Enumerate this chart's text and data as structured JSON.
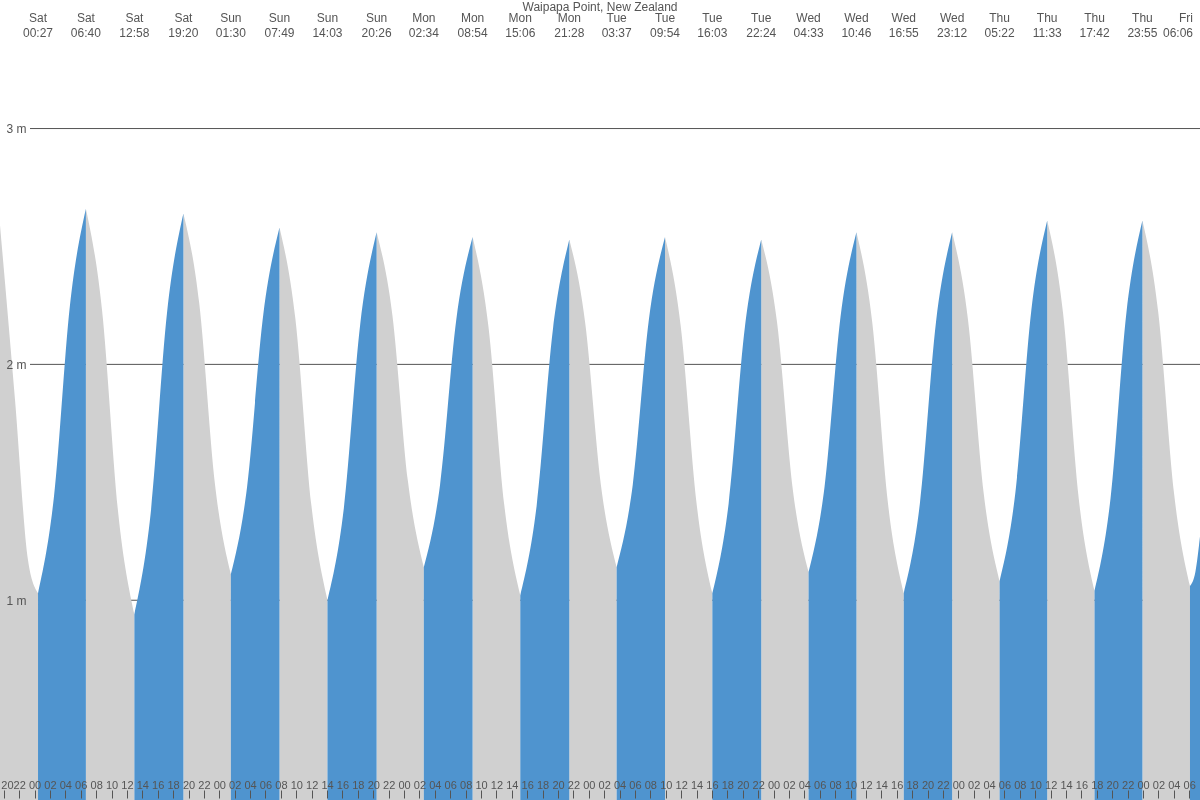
{
  "chart_data": {
    "type": "area",
    "title": "Waipapa Point, New Zealand",
    "xlim": [
      19.51,
      175.4
    ],
    "ylim": [
      0.153,
      3.545
    ],
    "yticks": [
      {
        "value": 1,
        "label": "1 m"
      },
      {
        "value": 2,
        "label": "2 m"
      },
      {
        "value": 3,
        "label": "3 m"
      }
    ],
    "xticks": [
      {
        "value": 20,
        "label": "20"
      },
      {
        "value": 22,
        "label": "22"
      },
      {
        "value": 24,
        "label": "00"
      },
      {
        "value": 26,
        "label": "02"
      },
      {
        "value": 28,
        "label": "04"
      },
      {
        "value": 30,
        "label": "06"
      },
      {
        "value": 32,
        "label": "08"
      },
      {
        "value": 34,
        "label": "10"
      },
      {
        "value": 36,
        "label": "12"
      },
      {
        "value": 38,
        "label": "14"
      },
      {
        "value": 40,
        "label": "16"
      },
      {
        "value": 42,
        "label": "18"
      },
      {
        "value": 44,
        "label": "20"
      },
      {
        "value": 46,
        "label": "22"
      },
      {
        "value": 48,
        "label": "00"
      },
      {
        "value": 50,
        "label": "02"
      },
      {
        "value": 52,
        "label": "04"
      },
      {
        "value": 54,
        "label": "06"
      },
      {
        "value": 56,
        "label": "08"
      },
      {
        "value": 58,
        "label": "10"
      },
      {
        "value": 60,
        "label": "12"
      },
      {
        "value": 62,
        "label": "14"
      },
      {
        "value": 64,
        "label": "16"
      },
      {
        "value": 66,
        "label": "18"
      },
      {
        "value": 68,
        "label": "20"
      },
      {
        "value": 70,
        "label": "22"
      },
      {
        "value": 72,
        "label": "00"
      },
      {
        "value": 74,
        "label": "02"
      },
      {
        "value": 76,
        "label": "04"
      },
      {
        "value": 78,
        "label": "06"
      },
      {
        "value": 80,
        "label": "08"
      },
      {
        "value": 82,
        "label": "10"
      },
      {
        "value": 84,
        "label": "12"
      },
      {
        "value": 86,
        "label": "14"
      },
      {
        "value": 88,
        "label": "16"
      },
      {
        "value": 90,
        "label": "18"
      },
      {
        "value": 92,
        "label": "20"
      },
      {
        "value": 94,
        "label": "22"
      },
      {
        "value": 96,
        "label": "00"
      },
      {
        "value": 98,
        "label": "02"
      },
      {
        "value": 100,
        "label": "04"
      },
      {
        "value": 102,
        "label": "06"
      },
      {
        "value": 104,
        "label": "08"
      },
      {
        "value": 106,
        "label": "10"
      },
      {
        "value": 108,
        "label": "12"
      },
      {
        "value": 110,
        "label": "14"
      },
      {
        "value": 112,
        "label": "16"
      },
      {
        "value": 114,
        "label": "18"
      },
      {
        "value": 116,
        "label": "20"
      },
      {
        "value": 118,
        "label": "22"
      },
      {
        "value": 120,
        "label": "00"
      },
      {
        "value": 122,
        "label": "02"
      },
      {
        "value": 124,
        "label": "04"
      },
      {
        "value": 126,
        "label": "06"
      },
      {
        "value": 128,
        "label": "08"
      },
      {
        "value": 130,
        "label": "10"
      },
      {
        "value": 132,
        "label": "12"
      },
      {
        "value": 134,
        "label": "14"
      },
      {
        "value": 136,
        "label": "16"
      },
      {
        "value": 138,
        "label": "18"
      },
      {
        "value": 140,
        "label": "20"
      },
      {
        "value": 142,
        "label": "22"
      },
      {
        "value": 144,
        "label": "00"
      },
      {
        "value": 146,
        "label": "02"
      },
      {
        "value": 148,
        "label": "04"
      },
      {
        "value": 150,
        "label": "06"
      },
      {
        "value": 152,
        "label": "08"
      },
      {
        "value": 154,
        "label": "10"
      },
      {
        "value": 156,
        "label": "12"
      },
      {
        "value": 158,
        "label": "14"
      },
      {
        "value": 160,
        "label": "16"
      },
      {
        "value": 162,
        "label": "18"
      },
      {
        "value": 164,
        "label": "20"
      },
      {
        "value": 166,
        "label": "22"
      },
      {
        "value": 168,
        "label": "00"
      },
      {
        "value": 170,
        "label": "02"
      },
      {
        "value": 172,
        "label": "04"
      },
      {
        "value": 174,
        "label": "06"
      }
    ],
    "annotations": [
      "Sat 00:27",
      "Sat 06:40",
      "Sat 12:58",
      "Sat 19:20",
      "Sun 01:30",
      "Sun 07:49",
      "Sun 14:03",
      "Sun 20:26",
      "Mon 02:34",
      "Mon 08:54",
      "Mon 15:06",
      "Mon 21:28",
      "Tue 03:37",
      "Tue 09:54",
      "Tue 16:03",
      "Tue 22:24",
      "Wed 04:33",
      "Wed 10:46",
      "Wed 16:55",
      "Wed 23:12",
      "Thu 05:22",
      "Thu 11:33",
      "Thu 17:42",
      "Thu 23:55",
      "Fri 06:06"
    ],
    "grid": "y",
    "series": [
      {
        "color": "#d0d0d0",
        "x": [
          19.51,
          21.46,
          23.15,
          24.45,
          27.5,
          30.667,
          32.767,
          34.867,
          36.967,
          40,
          43.333,
          45.389,
          47.444,
          49.5,
          52,
          55.817,
          57.894,
          59.972,
          62.05,
          65,
          68.433,
          70.478,
          72.522,
          74.567,
          77,
          80.9,
          82.967,
          85.033,
          87.1,
          90,
          93.467,
          95.517,
          97.567,
          99.617,
          102,
          105.9,
          107.95,
          110.0,
          112.05,
          115,
          118.4,
          120.45,
          122.5,
          124.55,
          127,
          130.767,
          132.817,
          134.867,
          136.917,
          140,
          143.2,
          145.256,
          147.311,
          149.367,
          152,
          155.55,
          157.6,
          159.65,
          161.7,
          164,
          167.917,
          169.978,
          172.039,
          174.1
        ],
        "values": [
          2.59,
          1.85,
          1.17,
          1.03,
          null,
          2.66,
          2.23,
          1.37,
          0.94,
          null,
          2.64,
          2.26,
          1.49,
          1.11,
          null,
          2.58,
          2.19,
          1.4,
          1.0,
          null,
          2.56,
          2.21,
          1.5,
          1.14,
          null,
          2.54,
          2.16,
          1.4,
          1.02,
          null,
          2.53,
          2.18,
          1.49,
          1.14,
          null,
          2.54,
          2.16,
          1.41,
          1.03,
          null,
          2.53,
          2.18,
          1.47,
          1.12,
          null,
          2.56,
          2.18,
          1.41,
          1.03,
          null,
          2.56,
          2.19,
          1.45,
          1.08,
          null,
          2.61,
          2.22,
          1.43,
          1.04,
          null,
          2.61,
          2.22,
          1.45,
          1.06
        ]
      },
      {
        "color": "#4f94cf",
        "x": [
          24.45,
          26.522,
          28.594,
          30.667,
          34,
          36.967,
          39.089,
          41.211,
          43.333,
          46,
          49.5,
          51.606,
          53.711,
          55.817,
          59,
          62.05,
          64.178,
          66.306,
          68.433,
          71,
          74.567,
          76.678,
          78.789,
          80.9,
          84,
          87.1,
          89.222,
          91.344,
          93.467,
          96,
          99.617,
          101.711,
          103.806,
          105.9,
          109,
          112.05,
          114.167,
          116.283,
          118.4,
          121,
          124.55,
          126.622,
          128.694,
          130.767,
          134,
          136.917,
          139.011,
          141.106,
          143.2,
          146,
          149.367,
          151.428,
          153.489,
          155.55,
          158,
          161.7,
          163.772,
          165.844,
          167.917,
          171,
          174.1,
          174.8,
          175.4
        ],
        "values": [
          1.03,
          1.44,
          2.25,
          2.66,
          null,
          0.94,
          1.37,
          2.22,
          2.64,
          null,
          1.11,
          1.48,
          2.21,
          2.58,
          null,
          1.0,
          1.39,
          2.17,
          2.56,
          null,
          1.14,
          1.49,
          2.19,
          2.54,
          null,
          1.02,
          1.4,
          2.15,
          2.53,
          null,
          1.14,
          1.49,
          2.19,
          2.54,
          null,
          1.03,
          1.41,
          2.16,
          2.53,
          null,
          1.12,
          1.48,
          2.2,
          2.56,
          null,
          1.03,
          1.41,
          2.18,
          2.56,
          null,
          1.08,
          1.46,
          2.23,
          2.61,
          null,
          1.04,
          1.43,
          2.22,
          2.61,
          null,
          1.06,
          1.12,
          1.27
        ]
      }
    ]
  }
}
